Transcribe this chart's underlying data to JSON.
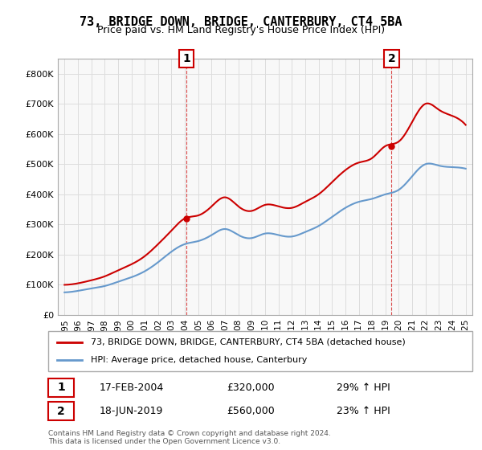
{
  "title": "73, BRIDGE DOWN, BRIDGE, CANTERBURY, CT4 5BA",
  "subtitle": "Price paid vs. HM Land Registry's House Price Index (HPI)",
  "property_label": "73, BRIDGE DOWN, BRIDGE, CANTERBURY, CT4 5BA (detached house)",
  "hpi_label": "HPI: Average price, detached house, Canterbury",
  "annotation1_label": "1",
  "annotation1_date": "17-FEB-2004",
  "annotation1_price": "£320,000",
  "annotation1_hpi": "29% ↑ HPI",
  "annotation2_label": "2",
  "annotation2_date": "18-JUN-2019",
  "annotation2_price": "£560,000",
  "annotation2_hpi": "23% ↑ HPI",
  "footer": "Contains HM Land Registry data © Crown copyright and database right 2024.\nThis data is licensed under the Open Government Licence v3.0.",
  "property_color": "#cc0000",
  "hpi_color": "#6699cc",
  "annotation_color": "#cc0000",
  "background_color": "#ffffff",
  "grid_color": "#dddddd",
  "ylim": [
    0,
    850000
  ],
  "yticks": [
    0,
    100000,
    200000,
    300000,
    400000,
    500000,
    600000,
    700000,
    800000
  ],
  "xlim_start": 1994.5,
  "xlim_end": 2025.5,
  "purchase1_x": 2004.12,
  "purchase1_y": 320000,
  "purchase2_x": 2019.46,
  "purchase2_y": 560000,
  "ann1_x_chart": 2004.12,
  "ann2_x_chart": 2019.46
}
